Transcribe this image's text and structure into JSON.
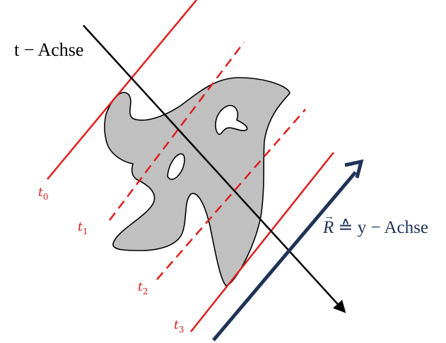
{
  "axes": {
    "t_axis_label": "t − Achse",
    "r_vector_symbol": "R",
    "r_vector_suffix": " ≙ y − Achse"
  },
  "time_lines": [
    {
      "symbol": "t",
      "subscript": "0",
      "style": "solid"
    },
    {
      "symbol": "t",
      "subscript": "1",
      "style": "dashed"
    },
    {
      "symbol": "t",
      "subscript": "2",
      "style": "dashed"
    },
    {
      "symbol": "t",
      "subscript": "3",
      "style": "solid"
    }
  ],
  "colors": {
    "time_lines": "#e01c1c",
    "r_vector": "#1f3357",
    "t_axis": "#000000",
    "blob_fill": "#c0c0c0",
    "blob_stroke": "#000000"
  }
}
